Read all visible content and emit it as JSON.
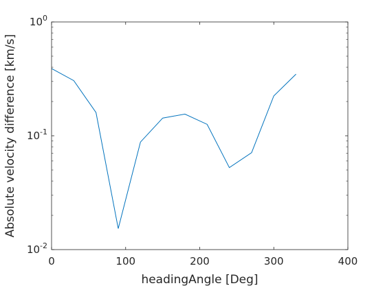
{
  "chart_data": {
    "type": "line",
    "title": "",
    "xlabel": "headingAngle [Deg]",
    "ylabel": "Absolute velocity difference [km/s]",
    "xlim": [
      0,
      400
    ],
    "ylim": [
      0.01,
      1
    ],
    "yscale": "log",
    "grid": false,
    "legend": "none",
    "x_ticks": [
      {
        "value": 0,
        "label": "0"
      },
      {
        "value": 100,
        "label": "100"
      },
      {
        "value": 200,
        "label": "200"
      },
      {
        "value": 300,
        "label": "300"
      },
      {
        "value": 400,
        "label": "400"
      }
    ],
    "y_ticks": [
      {
        "value": 0.01,
        "base": "10",
        "exp": "-2"
      },
      {
        "value": 0.1,
        "base": "10",
        "exp": "-1"
      },
      {
        "value": 1,
        "base": "10",
        "exp": "0"
      }
    ],
    "series": [
      {
        "color": "#0072bd",
        "x": [
          0,
          30,
          60,
          90,
          120,
          150,
          180,
          210,
          240,
          270,
          300,
          330
        ],
        "y": [
          0.39,
          0.305,
          0.16,
          0.0153,
          0.088,
          0.143,
          0.155,
          0.126,
          0.0525,
          0.071,
          0.224,
          0.348
        ]
      }
    ],
    "colors": {
      "axes": "#262626",
      "background": "#ffffff"
    }
  }
}
